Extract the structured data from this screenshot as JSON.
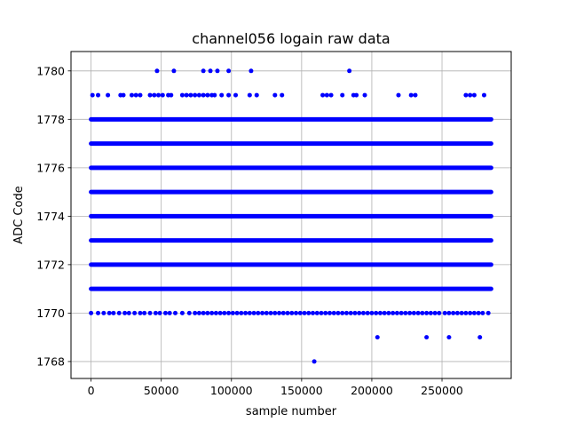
{
  "chart_data": {
    "type": "scatter",
    "title": "channel056 logain raw data",
    "xlabel": "sample number",
    "ylabel": "ADC Code",
    "xlim": [
      -14300,
      299300
    ],
    "ylim": [
      1767.3,
      1780.8
    ],
    "xticks": [
      0,
      50000,
      100000,
      150000,
      200000,
      250000
    ],
    "xtick_labels": [
      "0",
      "50000",
      "100000",
      "150000",
      "200000",
      "250000"
    ],
    "yticks": [
      1768,
      1770,
      1772,
      1774,
      1776,
      1778,
      1780
    ],
    "ytick_labels": [
      "1768",
      "1770",
      "1772",
      "1774",
      "1776",
      "1778",
      "1780"
    ],
    "grid": true,
    "marker_color": "#0000ff",
    "x_range": [
      0,
      285000
    ],
    "dense_levels": [
      1771,
      1772,
      1773,
      1774,
      1775,
      1776,
      1777,
      1778
    ],
    "sparse_levels": [
      {
        "y": 1770,
        "x": [
          0,
          5000,
          9000,
          13000,
          16000,
          20000,
          24000,
          27000,
          31000,
          35000,
          38000,
          42000,
          46000,
          49000,
          53000,
          56000,
          60000,
          65000,
          70000,
          74000,
          77000,
          80000,
          83000,
          86000,
          89000,
          92000,
          95000,
          98000,
          101000,
          104000,
          107000,
          110000,
          113000,
          116000,
          119000,
          122000,
          125000,
          128000,
          131000,
          134000,
          137000,
          140000,
          143000,
          146000,
          149000,
          152000,
          155000,
          158000,
          161000,
          164000,
          167000,
          170000,
          173000,
          176000,
          179000,
          182000,
          185000,
          188000,
          191000,
          194000,
          197000,
          200000,
          203000,
          206000,
          209000,
          212000,
          215000,
          218000,
          221000,
          224000,
          227000,
          230000,
          233000,
          236000,
          239000,
          242000,
          245000,
          248000,
          252000,
          255000,
          258000,
          261000,
          264000,
          267000,
          270000,
          273000,
          276000,
          279000,
          283000
        ]
      },
      {
        "y": 1779,
        "x": [
          1000,
          5000,
          12000,
          21000,
          23000,
          29000,
          32000,
          35000,
          42000,
          45000,
          48000,
          51000,
          55000,
          57000,
          65000,
          68000,
          71000,
          74000,
          77000,
          80000,
          83000,
          86000,
          88000,
          93000,
          98000,
          103000,
          113000,
          118000,
          131000,
          136000,
          165000,
          168000,
          171000,
          179000,
          187000,
          189000,
          195000,
          219000,
          228000,
          231000,
          267000,
          270000,
          273000,
          280000
        ]
      },
      {
        "y": 1780,
        "x": [
          47000,
          59000,
          80000,
          85000,
          90000,
          98000,
          114000,
          184000
        ]
      },
      {
        "y": 1769,
        "x": [
          204000,
          239000,
          255000,
          277000
        ]
      },
      {
        "y": 1768,
        "x": [
          159000
        ]
      }
    ]
  }
}
